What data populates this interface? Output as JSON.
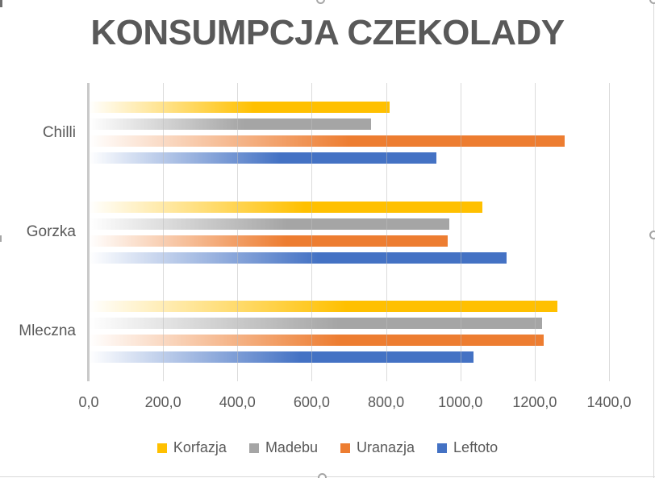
{
  "chart": {
    "title": "KONSUMPCJA CZEKOLADY",
    "title_color": "#595959",
    "text_color": "#595959",
    "gridline_color": "#d9d9d9",
    "border_color": "#d9d9d9"
  },
  "chart_data": {
    "type": "bar",
    "orientation": "horizontal",
    "title": "KONSUMPCJA CZEKOLADY",
    "categories": [
      "Chilli",
      "Gorzka",
      "Mleczna"
    ],
    "series": [
      {
        "name": "Korfazja",
        "color": "#FFC000",
        "values": [
          810,
          1060,
          1260
        ]
      },
      {
        "name": "Madebu",
        "color": "#A5A5A5",
        "values": [
          760,
          970,
          1220
        ]
      },
      {
        "name": "Uranazja",
        "color": "#ED7D31",
        "values": [
          1280,
          965,
          1225
        ]
      },
      {
        "name": "Leftoto",
        "color": "#4472C4",
        "values": [
          935,
          1125,
          1035
        ]
      }
    ],
    "x_axis": {
      "min": 0,
      "max": 1400,
      "tick_step": 200,
      "tick_labels": [
        "0,0",
        "200,0",
        "400,0",
        "600,0",
        "800,0",
        "1000,0",
        "1200,0",
        "1400,0"
      ]
    },
    "xlabel": "",
    "ylabel": "",
    "legend_position": "bottom",
    "gridlines": true,
    "bar_fill": "white-to-color horizontal gradient"
  }
}
